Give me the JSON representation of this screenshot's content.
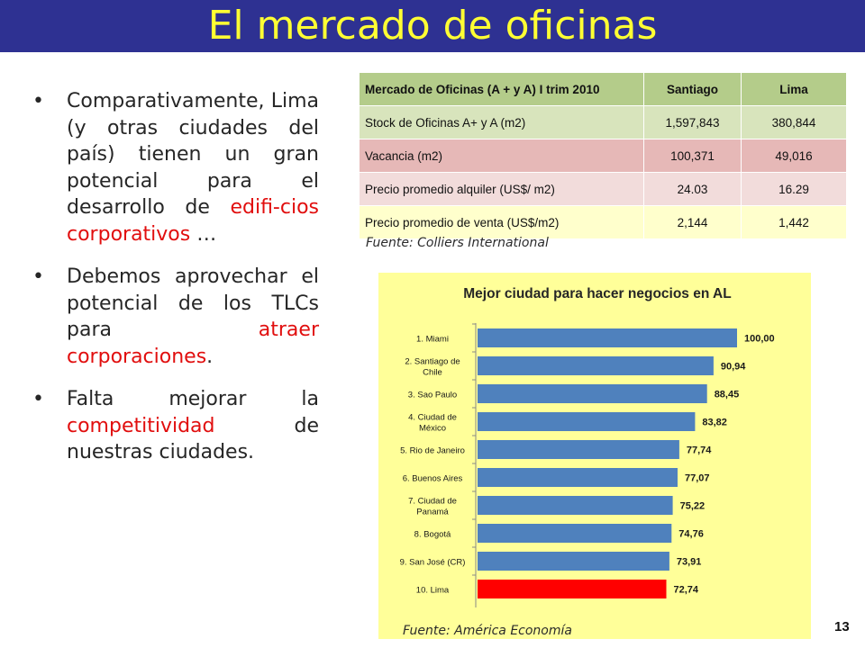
{
  "title": "El mercado de oficinas",
  "bullets": [
    {
      "segments": [
        {
          "text": "Comparativamente, Lima (y otras ciudades del país) tienen un gran potencial para el desarrollo de ",
          "red": false
        },
        {
          "text": "edifi-cios corporativos",
          "red": true
        },
        {
          "text": " …",
          "red": false
        }
      ]
    },
    {
      "segments": [
        {
          "text": "Debemos aprovechar el potencial de los TLCs para ",
          "red": false
        },
        {
          "text": "atraer corporaciones",
          "red": true
        },
        {
          "text": ".",
          "red": false
        }
      ]
    },
    {
      "segments": [
        {
          "text": "Falta mejorar la ",
          "red": false
        },
        {
          "text": "competitividad",
          "red": true
        },
        {
          "text": " de nuestras ciudades.",
          "red": false
        }
      ]
    }
  ],
  "table": {
    "headers": [
      "Mercado de Oficinas (A + y A)  I trim 2010",
      "Santiago",
      "Lima"
    ],
    "rows": [
      {
        "label": "Stock de Oficinas A+ y A (m2)",
        "santiago": "1,597,843",
        "lima": "380,844",
        "color": "green"
      },
      {
        "label": "Vacancia (m2)",
        "santiago": "100,371",
        "lima": "49,016",
        "color": "red"
      },
      {
        "label": "Precio promedio alquiler (US$/ m2)",
        "santiago": "24.03",
        "lima": "16.29",
        "color": "pink"
      },
      {
        "label": "Precio promedio de venta (US$/m2)",
        "santiago": "2,144",
        "lima": "1,442",
        "color": "yellow"
      }
    ],
    "source": "Fuente: Colliers International"
  },
  "chart_data": {
    "type": "bar",
    "orientation": "horizontal",
    "title": "Mejor ciudad para hacer negocios en AL",
    "categories": [
      [
        "1. Miami"
      ],
      [
        "2. Santiago de",
        "Chile"
      ],
      [
        "3. Sao Paulo"
      ],
      [
        "4. Ciudad de",
        "México"
      ],
      [
        "5. Rio de Janeiro"
      ],
      [
        "6. Buenos Aires"
      ],
      [
        "7. Ciudad de",
        "Panamá"
      ],
      [
        "8. Bogotá"
      ],
      [
        "9. San José  (CR)"
      ],
      [
        "10. Lima"
      ]
    ],
    "values": [
      100.0,
      90.94,
      88.45,
      83.82,
      77.74,
      77.07,
      75.22,
      74.76,
      73.91,
      72.74
    ],
    "value_labels": [
      "100,00",
      "90,94",
      "88,45",
      "83,82",
      "77,74",
      "77,07",
      "75,22",
      "74,76",
      "73,91",
      "72,74"
    ],
    "xlim": [
      0,
      100
    ],
    "bar_color": "#4f81bd",
    "highlight_color": "#ff0000",
    "highlight_index": 9,
    "background": "#ffff99",
    "source": "Fuente: América Economía"
  },
  "page_number": "13"
}
